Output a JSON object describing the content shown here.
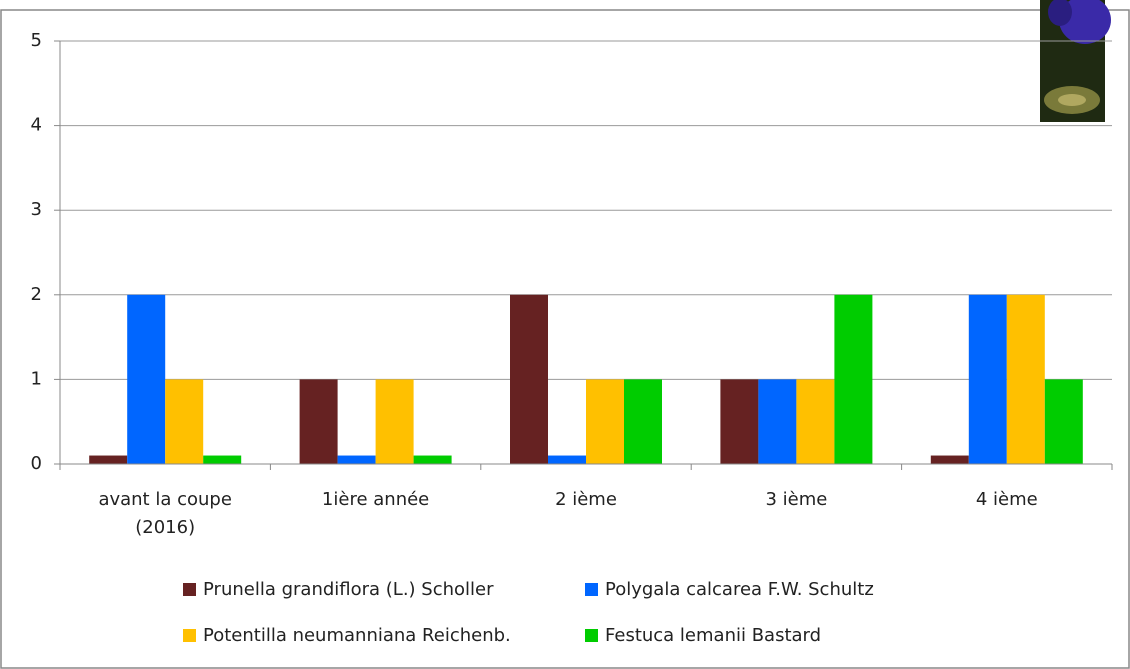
{
  "chart_data": {
    "type": "bar",
    "categories": [
      "avant la coupe (2016)",
      "1ière année",
      "2 ième",
      "3 ième",
      "4 ième"
    ],
    "series": [
      {
        "name": "Prunella grandiflora (L.) Scholler",
        "color": "#662222",
        "values": [
          0.1,
          1,
          2,
          1,
          0.1
        ]
      },
      {
        "name": "Polygala calcarea F.W. Schultz",
        "color": "#0066ff",
        "values": [
          2,
          0.1,
          0.1,
          1,
          2
        ]
      },
      {
        "name": "Potentilla neumanniana Reichenb.",
        "color": "#ffc000",
        "values": [
          1,
          1,
          1,
          1,
          2
        ]
      },
      {
        "name": "Festuca lemanii Bastard",
        "color": "#00cc00",
        "values": [
          0.1,
          0.1,
          1,
          2,
          1
        ]
      }
    ],
    "ylim": [
      0,
      5
    ],
    "yticks": [
      0,
      1,
      2,
      3,
      4,
      5
    ],
    "grid": true
  }
}
